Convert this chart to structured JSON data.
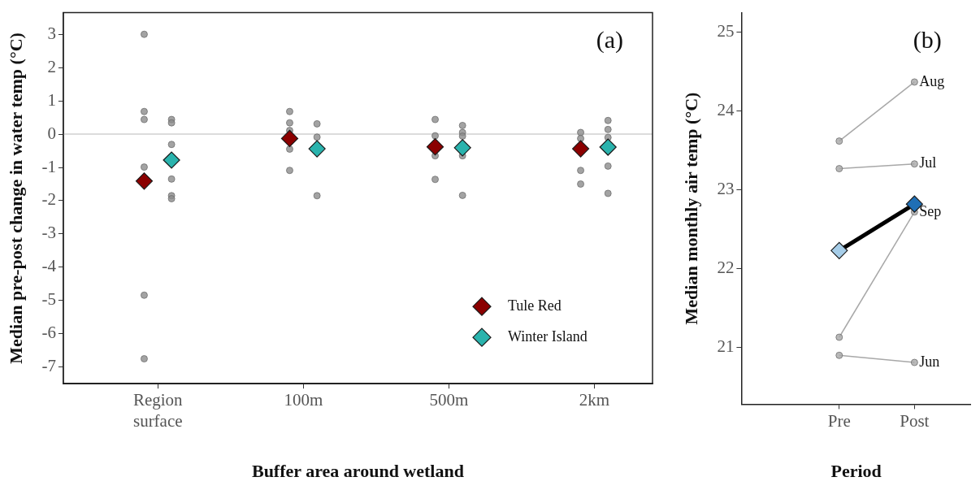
{
  "chart_data": [
    {
      "type": "scatter",
      "xlabel": "Buffer area around wetland",
      "ylabel": "Median pre-post change in water temp (°C)",
      "categories": [
        "Region surface",
        "100m",
        "500m",
        "2km"
      ],
      "ylim": [
        -7.5,
        3.65
      ],
      "yticks": [
        3,
        2,
        1,
        0,
        -1,
        -2,
        -3,
        -4,
        -5,
        -6,
        -7
      ],
      "grid": false,
      "legend": "bottom right",
      "annotations": [
        "(a)"
      ],
      "ref_lines": [
        {
          "axis": "y",
          "value": 0,
          "color": "#d0d0d0"
        }
      ],
      "series": [
        {
          "marker": "circle",
          "color": "#8c8c8c",
          "x": [
            "Region surface",
            "Region surface",
            "Region surface",
            "Region surface",
            "Region surface",
            "Region surface",
            "100m",
            "100m",
            "100m",
            "100m",
            "100m",
            "100m",
            "500m",
            "500m",
            "500m",
            "500m",
            "2km",
            "2km",
            "2km",
            "2km"
          ],
          "values": [
            3.0,
            0.68,
            0.44,
            -0.99,
            -4.84,
            -6.75,
            0.68,
            0.34,
            0.11,
            null,
            -0.45,
            -1.09,
            0.44,
            -0.05,
            -0.65,
            -1.36,
            0.05,
            -0.13,
            -1.09,
            -1.5
          ]
        },
        {
          "marker": "circle",
          "color": "#8c8c8c",
          "x": [
            "Region surface",
            "Region surface",
            "Region surface",
            "Region surface",
            "Region surface",
            "Region surface",
            "100m",
            "100m",
            "100m",
            "500m",
            "500m",
            "500m",
            "500m",
            "500m",
            "2km",
            "2km",
            "2km",
            "2km",
            "2km",
            "2km"
          ],
          "values": [
            0.44,
            0.34,
            -0.31,
            -1.35,
            -1.85,
            -1.94,
            0.31,
            -0.09,
            -1.85,
            0.26,
            0.05,
            -0.06,
            -0.65,
            -1.84,
            0.41,
            0.14,
            null,
            -0.1,
            -0.96,
            -1.78
          ]
        },
        {
          "name": "Tule Red",
          "marker": "diamond",
          "color": "#8b0000",
          "values": [
            -1.41,
            -0.13,
            -0.38,
            -0.44
          ]
        },
        {
          "name": "Winter Island",
          "marker": "diamond",
          "color": "#2ab3ad",
          "values": [
            -0.78,
            -0.44,
            -0.41,
            -0.39
          ]
        }
      ]
    },
    {
      "type": "line",
      "xlabel": "Period",
      "ylabel": "Median monthly air temp (°C)",
      "categories": [
        "Pre",
        "Post"
      ],
      "ylim": [
        20.28,
        25.25
      ],
      "yticks": [
        21,
        22,
        23,
        24,
        25
      ],
      "grid": false,
      "legend": false,
      "annotations": [
        "(b)"
      ],
      "line_style": "solid",
      "series": [
        {
          "name": "Aug",
          "marker": "circle",
          "color": "#a8a8a8",
          "values": [
            23.62,
            24.37
          ]
        },
        {
          "name": "Jul",
          "marker": "circle",
          "color": "#a8a8a8",
          "values": [
            23.27,
            23.33
          ]
        },
        {
          "name": "Sep",
          "marker": "circle",
          "color": "#a8a8a8",
          "values": [
            21.13,
            22.72
          ]
        },
        {
          "name": "Jun",
          "marker": "circle",
          "color": "#a8a8a8",
          "values": [
            20.9,
            20.81
          ]
        },
        {
          "marker": "diamond",
          "color": "#000000",
          "colors": [
            "#a6cde8",
            "#1f6fb5"
          ],
          "values": [
            22.23,
            22.82
          ]
        }
      ]
    }
  ]
}
